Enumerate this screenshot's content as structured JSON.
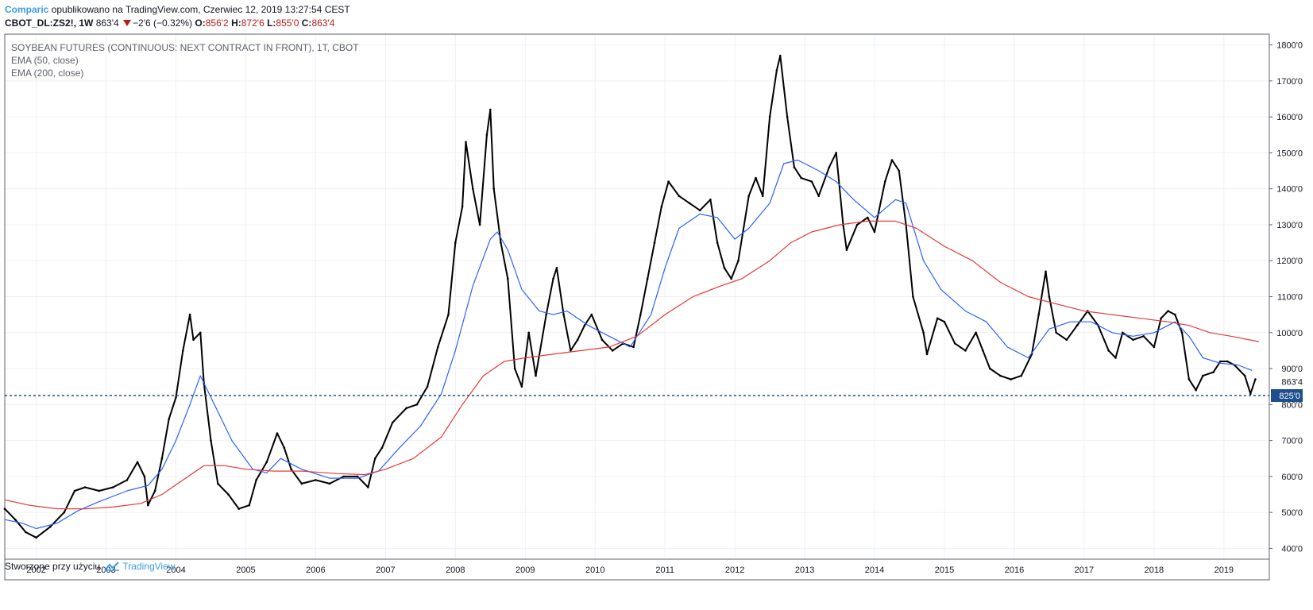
{
  "header": {
    "brand": "Comparic",
    "published": " opublikowano na TradingView.com, Czerwiec 12, 2019 13:27:54 CEST",
    "symbol": "CBOT_DL:ZS2!, 1W",
    "last": "863'4",
    "change": "−2'6 (−0.32%)",
    "o_label": "O:",
    "o_value": "856'2",
    "h_label": "H:",
    "h_value": "872'6",
    "l_label": "L:",
    "l_value": "855'0",
    "c_label": "C:",
    "c_value": "863'4"
  },
  "legend": {
    "title": "SOYBEAN FUTURES (CONTINUOUS: NEXT CONTRACT IN FRONT), 1T, CBOT",
    "ema50": "EMA (50, close)",
    "ema200": "EMA (200, close)"
  },
  "footer": {
    "made_with": "Stworzone przy użyciu",
    "brand": "TradingView"
  },
  "colors": {
    "price": "#000000",
    "ema50": "#2962ff",
    "ema200": "#e53935",
    "hline": "#1e4e8c",
    "brand": "#3b9be8",
    "down": "#b71c1c"
  },
  "chart_data": {
    "type": "line",
    "title": "SOYBEAN FUTURES (CONTINUOUS: NEXT CONTRACT IN FRONT), 1T, CBOT",
    "x_range": [
      2001.55,
      2019.65
    ],
    "ylim": [
      370,
      1830
    ],
    "x_ticks": [
      "2002",
      "2003",
      "2004",
      "2005",
      "2006",
      "2007",
      "2008",
      "2009",
      "2010",
      "2011",
      "2012",
      "2013",
      "2014",
      "2015",
      "2016",
      "2017",
      "2018",
      "2019"
    ],
    "y_ticks": [
      "400'0",
      "500'0",
      "600'0",
      "700'0",
      "800'0",
      "900'0",
      "1000'0",
      "1100'0",
      "1200'0",
      "1300'0",
      "1400'0",
      "1500'0",
      "1600'0",
      "1700'0",
      "1800'0"
    ],
    "y_tick_values": [
      400,
      500,
      600,
      700,
      800,
      900,
      1000,
      1100,
      1200,
      1300,
      1400,
      1500,
      1600,
      1700,
      1800
    ],
    "last_price_label": "863'4",
    "last_price_value": 863.5,
    "horizontal_line": {
      "label": "825'0",
      "value": 825
    },
    "grid": true,
    "series": [
      {
        "name": "",
        "points": [
          [
            2001.55,
            510
          ],
          [
            2001.7,
            480
          ],
          [
            2001.85,
            445
          ],
          [
            2002.0,
            430
          ],
          [
            2002.2,
            460
          ],
          [
            2002.4,
            500
          ],
          [
            2002.55,
            560
          ],
          [
            2002.7,
            570
          ],
          [
            2002.9,
            560
          ],
          [
            2003.1,
            570
          ],
          [
            2003.3,
            590
          ],
          [
            2003.45,
            640
          ],
          [
            2003.55,
            600
          ],
          [
            2003.6,
            520
          ],
          [
            2003.7,
            560
          ],
          [
            2003.8,
            650
          ],
          [
            2003.9,
            760
          ],
          [
            2004.0,
            820
          ],
          [
            2004.1,
            950
          ],
          [
            2004.2,
            1050
          ],
          [
            2004.25,
            980
          ],
          [
            2004.35,
            1000
          ],
          [
            2004.4,
            860
          ],
          [
            2004.5,
            700
          ],
          [
            2004.6,
            580
          ],
          [
            2004.75,
            550
          ],
          [
            2004.9,
            510
          ],
          [
            2005.05,
            520
          ],
          [
            2005.15,
            590
          ],
          [
            2005.3,
            640
          ],
          [
            2005.45,
            720
          ],
          [
            2005.55,
            680
          ],
          [
            2005.65,
            620
          ],
          [
            2005.8,
            580
          ],
          [
            2006.0,
            590
          ],
          [
            2006.2,
            580
          ],
          [
            2006.4,
            600
          ],
          [
            2006.6,
            600
          ],
          [
            2006.75,
            570
          ],
          [
            2006.85,
            650
          ],
          [
            2006.95,
            680
          ],
          [
            2007.1,
            750
          ],
          [
            2007.3,
            790
          ],
          [
            2007.45,
            800
          ],
          [
            2007.6,
            850
          ],
          [
            2007.75,
            960
          ],
          [
            2007.9,
            1050
          ],
          [
            2008.0,
            1250
          ],
          [
            2008.1,
            1350
          ],
          [
            2008.15,
            1530
          ],
          [
            2008.25,
            1400
          ],
          [
            2008.35,
            1300
          ],
          [
            2008.45,
            1550
          ],
          [
            2008.5,
            1620
          ],
          [
            2008.55,
            1400
          ],
          [
            2008.65,
            1250
          ],
          [
            2008.75,
            1150
          ],
          [
            2008.85,
            900
          ],
          [
            2008.95,
            850
          ],
          [
            2009.05,
            1000
          ],
          [
            2009.15,
            880
          ],
          [
            2009.3,
            1050
          ],
          [
            2009.4,
            1150
          ],
          [
            2009.45,
            1180
          ],
          [
            2009.55,
            1050
          ],
          [
            2009.65,
            950
          ],
          [
            2009.75,
            980
          ],
          [
            2009.85,
            1020
          ],
          [
            2009.95,
            1050
          ],
          [
            2010.1,
            980
          ],
          [
            2010.25,
            950
          ],
          [
            2010.4,
            970
          ],
          [
            2010.55,
            960
          ],
          [
            2010.65,
            1050
          ],
          [
            2010.75,
            1150
          ],
          [
            2010.85,
            1250
          ],
          [
            2010.95,
            1350
          ],
          [
            2011.05,
            1420
          ],
          [
            2011.2,
            1380
          ],
          [
            2011.35,
            1360
          ],
          [
            2011.5,
            1340
          ],
          [
            2011.65,
            1370
          ],
          [
            2011.75,
            1250
          ],
          [
            2011.85,
            1180
          ],
          [
            2011.95,
            1150
          ],
          [
            2012.05,
            1200
          ],
          [
            2012.2,
            1380
          ],
          [
            2012.3,
            1430
          ],
          [
            2012.4,
            1380
          ],
          [
            2012.5,
            1600
          ],
          [
            2012.6,
            1730
          ],
          [
            2012.65,
            1770
          ],
          [
            2012.75,
            1600
          ],
          [
            2012.85,
            1460
          ],
          [
            2012.95,
            1430
          ],
          [
            2013.1,
            1420
          ],
          [
            2013.2,
            1380
          ],
          [
            2013.35,
            1460
          ],
          [
            2013.45,
            1500
          ],
          [
            2013.55,
            1300
          ],
          [
            2013.6,
            1230
          ],
          [
            2013.75,
            1300
          ],
          [
            2013.9,
            1320
          ],
          [
            2014.0,
            1280
          ],
          [
            2014.15,
            1420
          ],
          [
            2014.25,
            1480
          ],
          [
            2014.35,
            1450
          ],
          [
            2014.45,
            1300
          ],
          [
            2014.55,
            1100
          ],
          [
            2014.7,
            1000
          ],
          [
            2014.75,
            940
          ],
          [
            2014.9,
            1040
          ],
          [
            2015.0,
            1030
          ],
          [
            2015.15,
            970
          ],
          [
            2015.3,
            950
          ],
          [
            2015.45,
            1000
          ],
          [
            2015.55,
            950
          ],
          [
            2015.65,
            900
          ],
          [
            2015.8,
            880
          ],
          [
            2015.95,
            870
          ],
          [
            2016.1,
            880
          ],
          [
            2016.25,
            940
          ],
          [
            2016.35,
            1050
          ],
          [
            2016.45,
            1170
          ],
          [
            2016.5,
            1100
          ],
          [
            2016.6,
            1000
          ],
          [
            2016.75,
            980
          ],
          [
            2016.9,
            1020
          ],
          [
            2017.05,
            1060
          ],
          [
            2017.2,
            1020
          ],
          [
            2017.35,
            950
          ],
          [
            2017.45,
            930
          ],
          [
            2017.55,
            1000
          ],
          [
            2017.7,
            980
          ],
          [
            2017.85,
            990
          ],
          [
            2018.0,
            960
          ],
          [
            2018.1,
            1040
          ],
          [
            2018.2,
            1060
          ],
          [
            2018.3,
            1050
          ],
          [
            2018.4,
            1000
          ],
          [
            2018.5,
            870
          ],
          [
            2018.6,
            840
          ],
          [
            2018.7,
            880
          ],
          [
            2018.85,
            890
          ],
          [
            2018.95,
            920
          ],
          [
            2019.05,
            920
          ],
          [
            2019.15,
            910
          ],
          [
            2019.3,
            880
          ],
          [
            2019.38,
            830
          ],
          [
            2019.45,
            870
          ]
        ]
      },
      {
        "name": "EMA (50, close)",
        "points": [
          [
            2001.55,
            480
          ],
          [
            2001.8,
            470
          ],
          [
            2002.0,
            455
          ],
          [
            2002.3,
            470
          ],
          [
            2002.6,
            505
          ],
          [
            2002.9,
            530
          ],
          [
            2003.3,
            560
          ],
          [
            2003.6,
            575
          ],
          [
            2003.8,
            620
          ],
          [
            2004.0,
            700
          ],
          [
            2004.2,
            800
          ],
          [
            2004.35,
            880
          ],
          [
            2004.55,
            800
          ],
          [
            2004.8,
            700
          ],
          [
            2005.1,
            620
          ],
          [
            2005.3,
            610
          ],
          [
            2005.5,
            650
          ],
          [
            2005.8,
            620
          ],
          [
            2006.2,
            595
          ],
          [
            2006.6,
            595
          ],
          [
            2006.9,
            615
          ],
          [
            2007.2,
            680
          ],
          [
            2007.5,
            740
          ],
          [
            2007.8,
            830
          ],
          [
            2008.0,
            950
          ],
          [
            2008.25,
            1130
          ],
          [
            2008.5,
            1260
          ],
          [
            2008.6,
            1280
          ],
          [
            2008.75,
            1230
          ],
          [
            2008.95,
            1120
          ],
          [
            2009.2,
            1060
          ],
          [
            2009.4,
            1050
          ],
          [
            2009.6,
            1060
          ],
          [
            2009.9,
            1020
          ],
          [
            2010.2,
            990
          ],
          [
            2010.5,
            960
          ],
          [
            2010.8,
            1050
          ],
          [
            2011.0,
            1180
          ],
          [
            2011.2,
            1290
          ],
          [
            2011.5,
            1330
          ],
          [
            2011.75,
            1320
          ],
          [
            2012.0,
            1260
          ],
          [
            2012.2,
            1290
          ],
          [
            2012.5,
            1360
          ],
          [
            2012.7,
            1470
          ],
          [
            2012.9,
            1480
          ],
          [
            2013.2,
            1450
          ],
          [
            2013.45,
            1420
          ],
          [
            2013.7,
            1370
          ],
          [
            2014.0,
            1320
          ],
          [
            2014.3,
            1370
          ],
          [
            2014.45,
            1360
          ],
          [
            2014.7,
            1200
          ],
          [
            2014.95,
            1120
          ],
          [
            2015.3,
            1060
          ],
          [
            2015.6,
            1030
          ],
          [
            2015.9,
            960
          ],
          [
            2016.2,
            930
          ],
          [
            2016.5,
            1010
          ],
          [
            2016.8,
            1030
          ],
          [
            2017.1,
            1030
          ],
          [
            2017.4,
            1000
          ],
          [
            2017.7,
            990
          ],
          [
            2018.0,
            1000
          ],
          [
            2018.3,
            1030
          ],
          [
            2018.5,
            990
          ],
          [
            2018.7,
            930
          ],
          [
            2018.95,
            915
          ],
          [
            2019.2,
            910
          ],
          [
            2019.4,
            895
          ]
        ]
      },
      {
        "name": "EMA (200, close)",
        "points": [
          [
            2001.55,
            535
          ],
          [
            2001.9,
            520
          ],
          [
            2002.3,
            510
          ],
          [
            2002.7,
            510
          ],
          [
            2003.1,
            515
          ],
          [
            2003.5,
            525
          ],
          [
            2003.8,
            550
          ],
          [
            2004.1,
            590
          ],
          [
            2004.4,
            630
          ],
          [
            2004.7,
            630
          ],
          [
            2005.0,
            620
          ],
          [
            2005.4,
            615
          ],
          [
            2005.8,
            615
          ],
          [
            2006.3,
            608
          ],
          [
            2006.7,
            605
          ],
          [
            2007.0,
            620
          ],
          [
            2007.4,
            650
          ],
          [
            2007.8,
            710
          ],
          [
            2008.1,
            800
          ],
          [
            2008.4,
            880
          ],
          [
            2008.7,
            920
          ],
          [
            2009.0,
            930
          ],
          [
            2009.4,
            940
          ],
          [
            2009.8,
            950
          ],
          [
            2010.2,
            960
          ],
          [
            2010.6,
            990
          ],
          [
            2011.0,
            1050
          ],
          [
            2011.4,
            1100
          ],
          [
            2011.8,
            1130
          ],
          [
            2012.1,
            1150
          ],
          [
            2012.5,
            1200
          ],
          [
            2012.8,
            1250
          ],
          [
            2013.1,
            1280
          ],
          [
            2013.5,
            1300
          ],
          [
            2013.9,
            1310
          ],
          [
            2014.3,
            1310
          ],
          [
            2014.6,
            1290
          ],
          [
            2015.0,
            1240
          ],
          [
            2015.4,
            1200
          ],
          [
            2015.8,
            1140
          ],
          [
            2016.2,
            1100
          ],
          [
            2016.6,
            1080
          ],
          [
            2017.0,
            1060
          ],
          [
            2017.4,
            1050
          ],
          [
            2017.8,
            1040
          ],
          [
            2018.2,
            1030
          ],
          [
            2018.5,
            1020
          ],
          [
            2018.8,
            1000
          ],
          [
            2019.1,
            990
          ],
          [
            2019.5,
            975
          ]
        ]
      }
    ]
  }
}
